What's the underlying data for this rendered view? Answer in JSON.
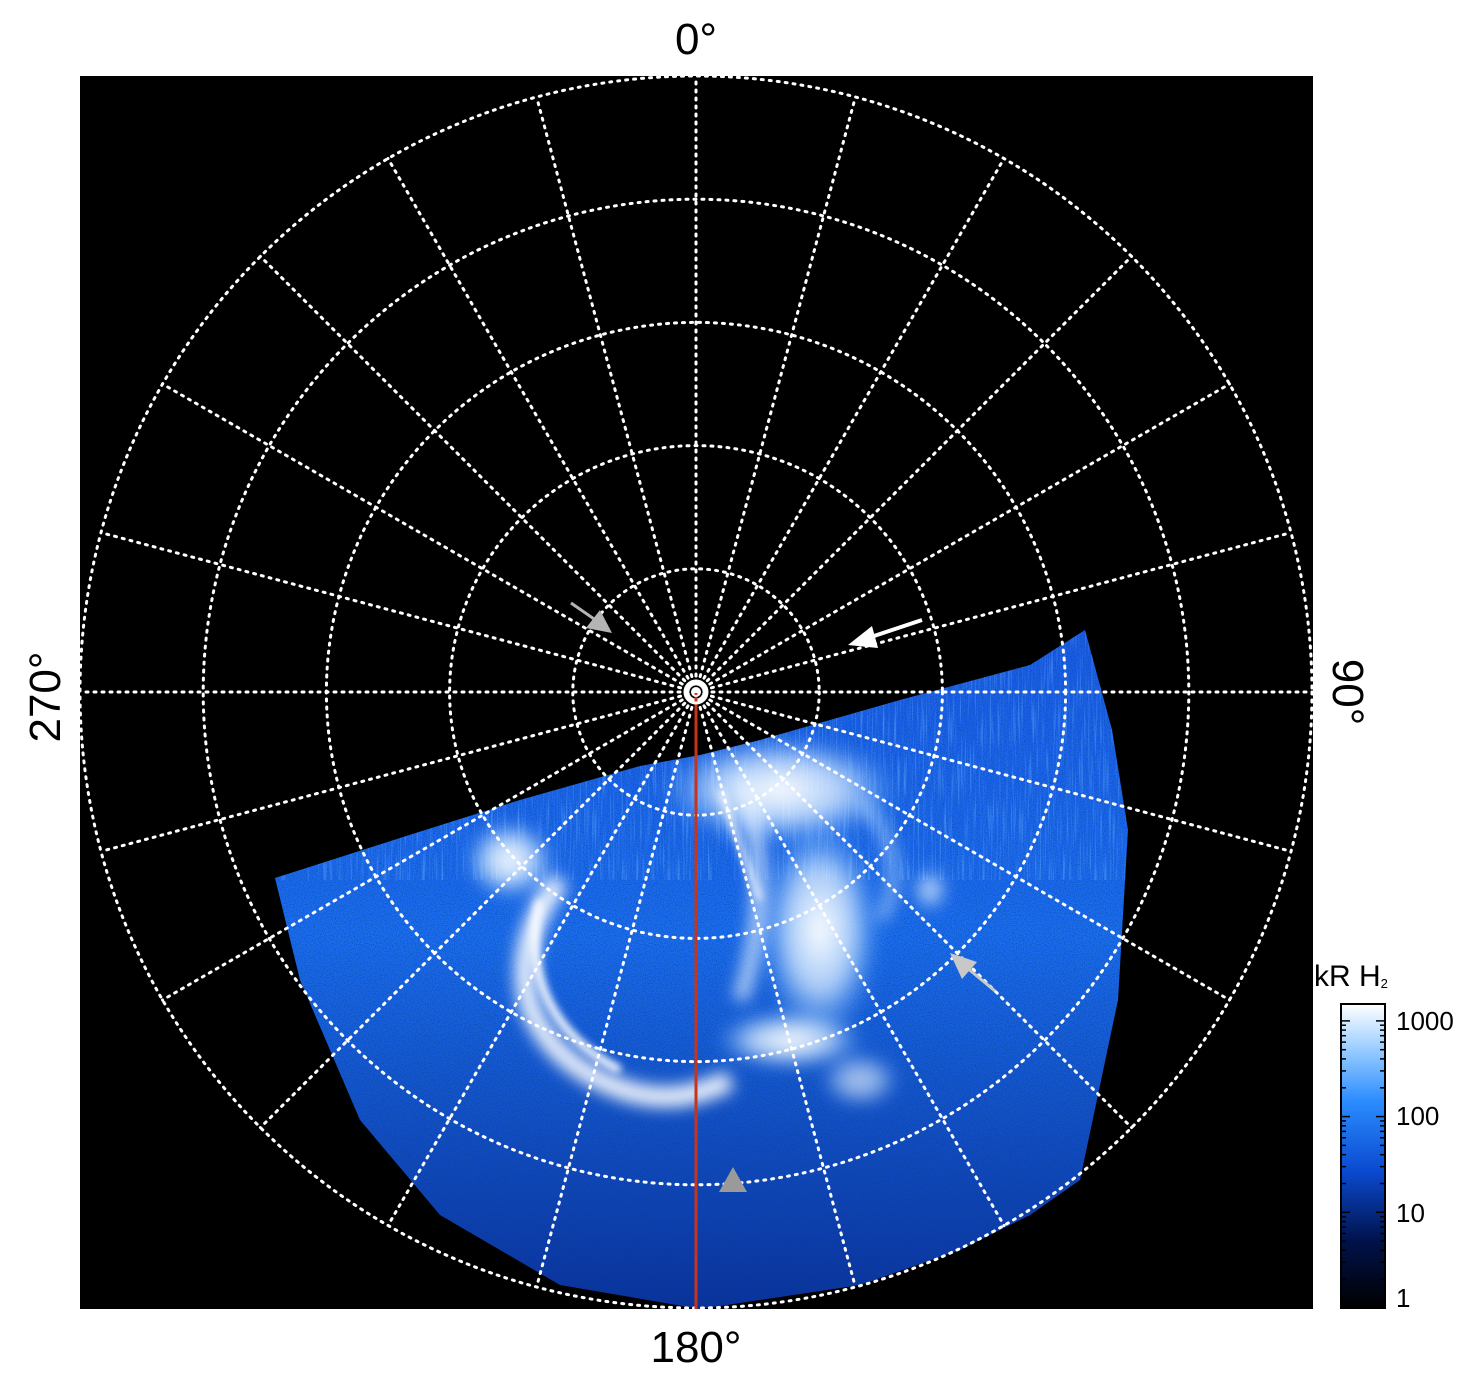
{
  "axes": {
    "top_label": "0°",
    "right_label": "90°",
    "bottom_label": "180°",
    "left_label": "270°"
  },
  "colorbar": {
    "title": "kR H",
    "title_sub": "2",
    "ticks": [
      "1000",
      "100",
      "10",
      "1"
    ],
    "scale": "log",
    "range": [
      1,
      1500
    ],
    "colors": [
      "#000000",
      "#00124a",
      "#0a4ad0",
      "#2b8cff",
      "#9fd0ff",
      "#ffffff"
    ]
  },
  "colors": {
    "background": "#000000",
    "grid": "#ffffff",
    "meridian_line": "#c8331b",
    "arrow_gray": "#b4b4b4",
    "arrow_white": "#ffffff",
    "aurora_low": "#0b3ec4",
    "aurora_high": "#ffffff"
  },
  "grid": {
    "style": "dotted",
    "latitude_circles": 5,
    "longitude_step_deg": 15
  },
  "annotations": {
    "arrows": [
      {
        "name": "gray-arrow-upper-left",
        "color": "gray"
      },
      {
        "name": "white-arrow-upper-right",
        "color": "white"
      },
      {
        "name": "gray-arrow-right",
        "color": "gray"
      },
      {
        "name": "gray-arrowhead-bottom",
        "color": "gray"
      }
    ]
  }
}
